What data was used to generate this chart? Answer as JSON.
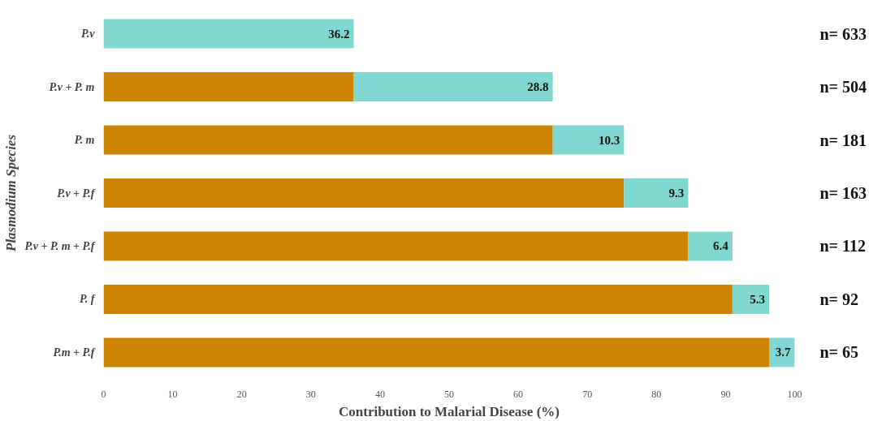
{
  "chart_data": {
    "type": "bar",
    "orientation": "horizontal",
    "stacked": true,
    "xlabel": "Contribution to Malarial Disease (%)",
    "ylabel": "Plasmodium Species",
    "categories": [
      "P.v",
      "P.v + P. m",
      "P. m",
      "P.v + P.f",
      "P.v + P. m + P.f",
      "P. f",
      "P.m + P.f"
    ],
    "series": [
      {
        "color": "#cc8400",
        "values": [
          0,
          36.2,
          65.0,
          75.3,
          84.6,
          91.0,
          96.3
        ]
      },
      {
        "color": "#80d8d0",
        "values": [
          36.2,
          28.8,
          10.3,
          9.3,
          6.4,
          5.3,
          3.7
        ],
        "value_labels": [
          "36.2",
          "28.8",
          "10.3",
          "9.3",
          "6.4",
          "5.3",
          "3.7"
        ]
      }
    ],
    "xlim": [
      0,
      100
    ],
    "xticks": [
      0,
      10,
      20,
      30,
      40,
      50,
      60,
      70,
      80,
      90,
      100
    ],
    "grid": false,
    "annotations": [
      "n= 633",
      "n= 504",
      "n= 181",
      "n= 163",
      "n= 112",
      "n= 92",
      "n= 65"
    ]
  }
}
